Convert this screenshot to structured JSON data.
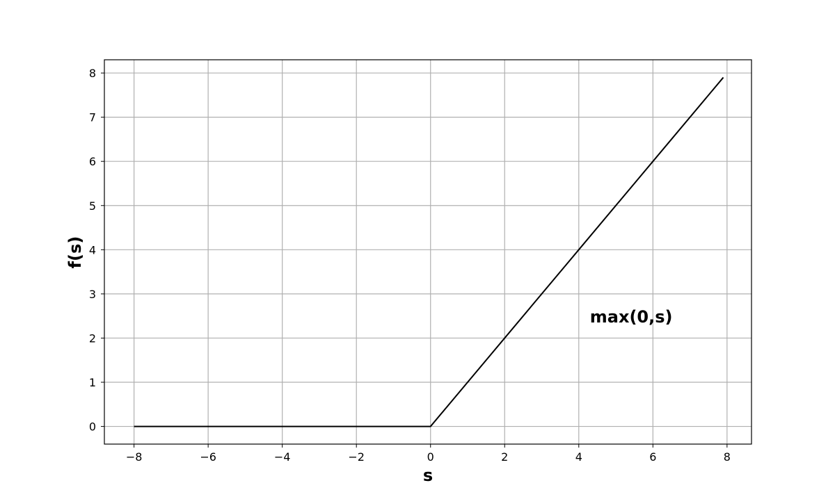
{
  "chart_data": {
    "type": "line",
    "title": "",
    "xlabel": "s",
    "ylabel": "f(s)",
    "xlim": [
      -8.8,
      8.66
    ],
    "ylim": [
      -0.4,
      8.3
    ],
    "grid": true,
    "xticks": [
      -8,
      -6,
      -4,
      -2,
      0,
      2,
      4,
      6,
      8
    ],
    "yticks": [
      0,
      1,
      2,
      3,
      4,
      5,
      6,
      7,
      8
    ],
    "xtick_labels": [
      "−8",
      "−6",
      "−4",
      "−2",
      "0",
      "2",
      "4",
      "6",
      "8"
    ],
    "ytick_labels": [
      "0",
      "1",
      "2",
      "3",
      "4",
      "5",
      "6",
      "7",
      "8"
    ],
    "series": [
      {
        "color": "#000000",
        "x": [
          -8,
          -6,
          -4,
          -2,
          0,
          2,
          4,
          6,
          7.9
        ],
        "y": [
          0,
          0,
          0,
          0,
          0,
          2,
          4,
          6,
          7.9
        ]
      }
    ],
    "annotations": [
      {
        "text": "max(0,s)",
        "x": 4.3,
        "y": 2.35
      }
    ],
    "colors": {
      "line": "#000000",
      "grid": "#b0b0b0",
      "frame": "#000000",
      "background": "#ffffff"
    }
  }
}
